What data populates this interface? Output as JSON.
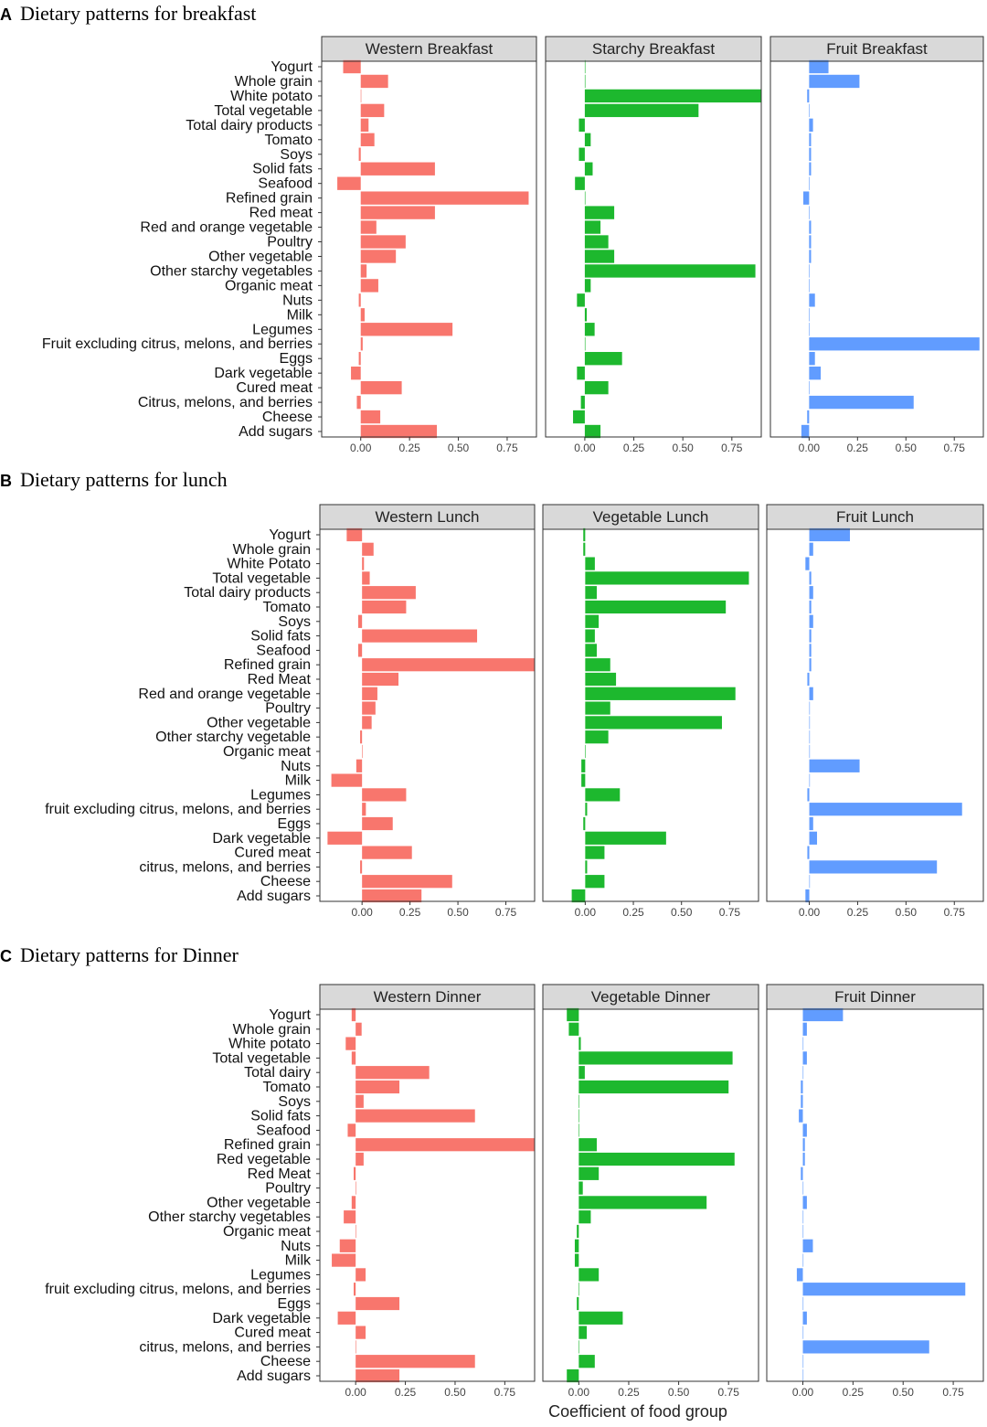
{
  "x_axis_title": "Coefficient of food group",
  "colors": {
    "western": "#F8766D",
    "middle": "#1DB82E",
    "fruit": "#619CFF"
  },
  "chart_data": [
    {
      "type": "bar",
      "orientation": "horizontal",
      "letter": "A",
      "title": "Dietary patterns for breakfast",
      "xlim": [
        -0.2,
        0.9
      ],
      "xticks": [
        0.0,
        0.25,
        0.5,
        0.75
      ],
      "xtick_labels": [
        "0.00",
        "0.25",
        "0.50",
        "0.75"
      ],
      "categories": [
        "Yogurt",
        "Whole grain",
        "White potato",
        "Total vegetable",
        "Total dairy products",
        "Tomato",
        "Soys",
        "Solid fats",
        "Seafood",
        "Refined grain",
        "Red meat",
        "Red and orange vegetable",
        "Poultry",
        "Other vegetable",
        "Other starchy vegetables",
        "Organic meat",
        "Nuts",
        "Milk",
        "Legumes",
        "Fruit excluding citrus, melons, and berries",
        "Eggs",
        "Dark vegetable",
        "Cured meat",
        "Citrus, melons, and berries",
        "Cheese",
        "Add sugars"
      ],
      "series": [
        {
          "name": "Western Breakfast",
          "values": [
            -0.09,
            0.14,
            0.0,
            0.12,
            0.04,
            0.07,
            -0.01,
            0.38,
            -0.12,
            0.86,
            0.38,
            0.08,
            0.23,
            0.18,
            0.03,
            0.09,
            -0.01,
            0.02,
            0.47,
            0.01,
            -0.01,
            -0.05,
            0.21,
            -0.02,
            0.1,
            0.39
          ]
        },
        {
          "name": "Starchy Breakfast",
          "values": [
            0.0,
            0.0,
            0.9,
            0.58,
            -0.03,
            0.03,
            -0.03,
            0.04,
            -0.05,
            0.0,
            0.15,
            0.08,
            0.12,
            0.15,
            0.87,
            0.03,
            -0.04,
            0.01,
            0.05,
            0.0,
            0.19,
            -0.04,
            0.12,
            -0.02,
            -0.06,
            0.08
          ]
        },
        {
          "name": "Fruit Breakfast",
          "values": [
            0.1,
            0.26,
            -0.01,
            0.0,
            0.02,
            0.01,
            0.01,
            0.01,
            0.0,
            -0.03,
            0.0,
            0.01,
            0.01,
            0.01,
            0.0,
            0.0,
            0.03,
            0.0,
            0.0,
            0.88,
            0.03,
            0.06,
            0.0,
            0.54,
            -0.01,
            -0.04
          ]
        }
      ]
    },
    {
      "type": "bar",
      "orientation": "horizontal",
      "letter": "B",
      "title": "Dietary patterns for lunch",
      "xlim": [
        -0.22,
        0.9
      ],
      "xticks": [
        0.0,
        0.25,
        0.5,
        0.75
      ],
      "xtick_labels": [
        "0.00",
        "0.25",
        "0.50",
        "0.75"
      ],
      "categories": [
        "Yogurt",
        "Whole grain",
        "White Potato",
        "Total vegetable",
        "Total dairy products",
        "Tomato",
        "Soys",
        "Solid fats",
        "Seafood",
        "Refined grain",
        "Red Meat",
        "Red and orange vegetable",
        "Poultry",
        "Other vegetable",
        "Other starchy vegetable",
        "Organic meat",
        "Nuts",
        "Milk",
        "Legumes",
        "fruit excluding citrus, melons, and berries",
        "Eggs",
        "Dark vegetable",
        "Cured meat",
        "citrus, melons, and berries",
        "Cheese",
        "Add sugars"
      ],
      "series": [
        {
          "name": "Western Lunch",
          "values": [
            -0.08,
            0.06,
            0.01,
            0.04,
            0.28,
            0.23,
            -0.02,
            0.6,
            -0.02,
            0.9,
            0.19,
            0.08,
            0.07,
            0.05,
            -0.01,
            0.0,
            -0.03,
            -0.16,
            0.23,
            0.02,
            0.16,
            -0.18,
            0.26,
            -0.01,
            0.47,
            0.31
          ]
        },
        {
          "name": "Vegetable Lunch",
          "values": [
            -0.01,
            -0.01,
            0.05,
            0.85,
            0.06,
            0.73,
            0.07,
            0.05,
            0.06,
            0.13,
            0.16,
            0.78,
            0.13,
            0.71,
            0.12,
            0.0,
            -0.02,
            -0.02,
            0.18,
            0.01,
            -0.01,
            0.42,
            0.1,
            0.01,
            0.1,
            -0.07
          ]
        },
        {
          "name": "Fruit Lunch",
          "values": [
            0.21,
            0.02,
            -0.02,
            0.01,
            0.02,
            0.01,
            0.02,
            0.01,
            0.01,
            0.01,
            -0.01,
            0.02,
            0.0,
            0.0,
            0.0,
            0.0,
            0.26,
            0.0,
            -0.01,
            0.79,
            0.02,
            0.04,
            -0.01,
            0.66,
            0.0,
            -0.02
          ]
        }
      ]
    },
    {
      "type": "bar",
      "orientation": "horizontal",
      "letter": "C",
      "title": "Dietary patterns for Dinner",
      "xlim": [
        -0.18,
        0.9
      ],
      "xticks": [
        0.0,
        0.25,
        0.5,
        0.75
      ],
      "xtick_labels": [
        "0.00",
        "0.25",
        "0.50",
        "0.75"
      ],
      "categories": [
        "Yogurt",
        "Whole grain",
        "White potato",
        "Total vegetable",
        "Total dairy",
        "Tomato",
        "Soys",
        "Solid fats",
        "Seafood",
        "Refined grain",
        "Red vegetable",
        "Red Meat",
        "Poultry",
        "Other vegetable",
        "Other starchy vegetables",
        "Organic meat",
        "Nuts",
        "Milk",
        "Legumes",
        "fruit excluding citrus, melons, and berries",
        "Eggs",
        "Dark vegetable",
        "Cured meat",
        "citrus, melons, and berries",
        "Cheese",
        "Add sugars"
      ],
      "series": [
        {
          "name": "Western Dinner",
          "values": [
            -0.02,
            0.03,
            -0.05,
            -0.02,
            0.37,
            0.22,
            0.04,
            0.6,
            -0.04,
            0.9,
            0.04,
            -0.01,
            0.0,
            -0.02,
            -0.06,
            0.0,
            -0.08,
            -0.12,
            0.05,
            -0.01,
            0.22,
            -0.09,
            0.05,
            0.0,
            0.6,
            0.22
          ]
        },
        {
          "name": "Vegetable Dinner",
          "values": [
            -0.06,
            -0.05,
            0.01,
            0.77,
            0.03,
            0.75,
            0.0,
            0.0,
            0.0,
            0.09,
            0.78,
            0.1,
            0.02,
            0.64,
            0.06,
            -0.01,
            -0.02,
            -0.02,
            0.1,
            0.0,
            -0.01,
            0.22,
            0.04,
            0.0,
            0.08,
            -0.06
          ]
        },
        {
          "name": "Fruit Dinner",
          "values": [
            0.2,
            0.02,
            0.0,
            0.02,
            0.0,
            -0.01,
            -0.01,
            -0.02,
            0.02,
            0.01,
            0.01,
            -0.01,
            0.0,
            0.02,
            0.0,
            0.0,
            0.05,
            0.0,
            -0.03,
            0.81,
            0.0,
            0.02,
            0.0,
            0.63,
            0.0,
            0.0
          ]
        }
      ]
    }
  ]
}
